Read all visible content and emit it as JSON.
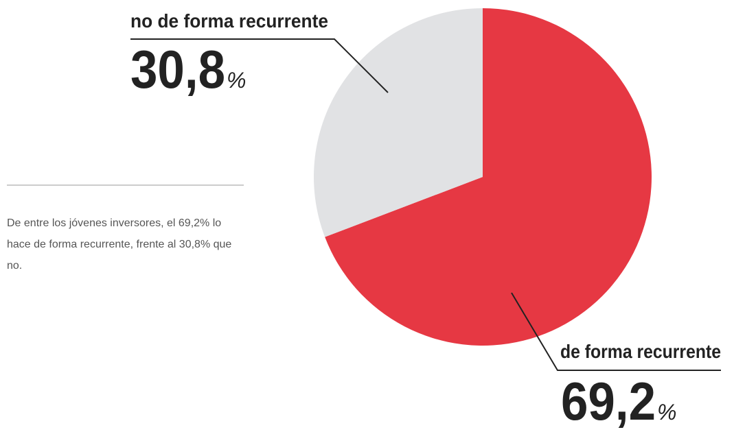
{
  "chart_data": {
    "type": "pie",
    "categories": [
      "de forma recurrente",
      "no de forma recurrente"
    ],
    "values": [
      69.2,
      30.8
    ],
    "value_labels": [
      "69,2",
      "30,8"
    ],
    "unit": "%",
    "colors": [
      "#e63843",
      "#e1e2e4"
    ],
    "description": "De entre los jóvenes inversores, el 69,2% lo hace de forma recurrente, frente al 30,8% que no."
  }
}
